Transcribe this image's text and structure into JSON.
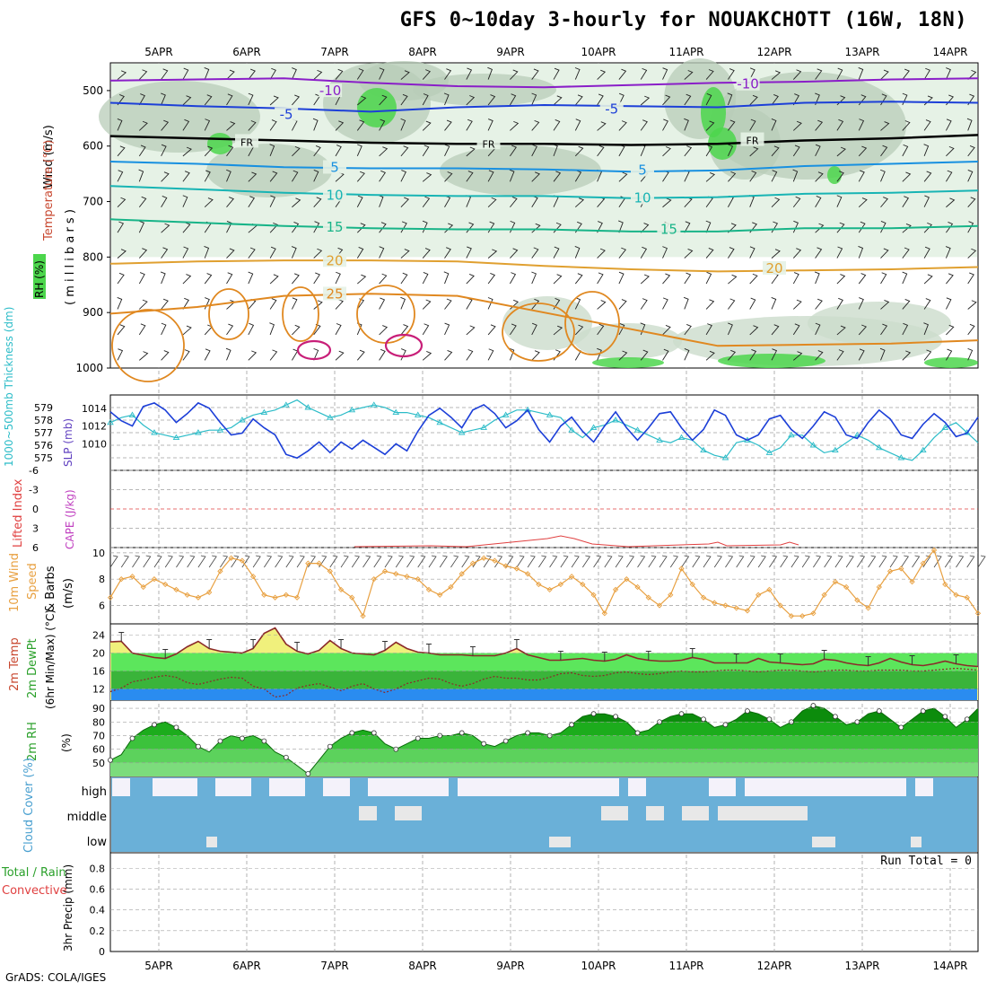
{
  "title": "GFS 0~10day 3-hourly for NOUAKCHOTT (16W, 18N)",
  "credit": "GrADS: COLA/IGES",
  "run_total": "Run Total = 0",
  "colors": {
    "rh_green": "#4cd64c",
    "slp_line": "#1c3fd8",
    "thickness_line": "#2cbcc8",
    "wind_line": "#e8a040",
    "temp_fill": "#f0f07c",
    "temp_line": "#8b2a2a",
    "dewpt_green": "#3ab43a",
    "blue_band": "#2a8cf0",
    "rh2m_dark": "#149614",
    "cloud_blue": "#6ab0d8",
    "grid": "#a0a0a0"
  },
  "chart_data": [
    {
      "type": "line",
      "panel": "upper-air",
      "ylabel_lines": [
        "Wind (m/s)",
        "Temperature (°C)",
        "RH (%)",
        "( m i l l i b a r s )"
      ],
      "y_ticks": [
        "500",
        "600",
        "700",
        "800",
        "900",
        "1000"
      ],
      "ylim": [
        450,
        1000
      ],
      "x_ticks": [
        "5APR",
        "6APR",
        "7APR",
        "8APR",
        "9APR",
        "10APR",
        "11APR",
        "12APR",
        "13APR",
        "14APR"
      ],
      "isotherm_labels": [
        {
          "label": "-10",
          "level": 502,
          "day": 2.95
        },
        {
          "label": "-10",
          "level": 490,
          "day": 7.7
        },
        {
          "label": "-5",
          "level": 545,
          "day": 2.45
        },
        {
          "label": "-5",
          "level": 535,
          "day": 6.15
        },
        {
          "label": "FR",
          "level": 593,
          "day": 2.0
        },
        {
          "label": "FR",
          "level": 596,
          "day": 4.75
        },
        {
          "label": "FR",
          "level": 590,
          "day": 7.75
        },
        {
          "label": "5",
          "level": 640,
          "day": 3.0
        },
        {
          "label": "5",
          "level": 645,
          "day": 6.5
        },
        {
          "label": "10",
          "level": 690,
          "day": 3.0
        },
        {
          "label": "10",
          "level": 695,
          "day": 6.5
        },
        {
          "label": "15",
          "level": 748,
          "day": 3.0
        },
        {
          "label": "15",
          "level": 752,
          "day": 6.8
        },
        {
          "label": "20",
          "level": 808,
          "day": 3.0
        },
        {
          "label": "20",
          "level": 822,
          "day": 8.0
        },
        {
          "label": "25",
          "level": 868,
          "day": 3.0
        }
      ],
      "isotherms": [
        {
          "name": "-10",
          "color": "#8a1ec8",
          "levels": [
            482,
            480,
            478,
            486,
            492,
            494,
            490,
            486,
            484,
            480,
            478
          ]
        },
        {
          "name": "-5",
          "color": "#1c3fd8",
          "levels": [
            522,
            528,
            532,
            538,
            530,
            526,
            528,
            530,
            522,
            520,
            522
          ]
        },
        {
          "name": "FR",
          "color": "#000000",
          "levels": [
            582,
            586,
            590,
            594,
            596,
            596,
            598,
            596,
            590,
            586,
            580
          ]
        },
        {
          "name": "5",
          "color": "#1890e0",
          "levels": [
            628,
            632,
            638,
            640,
            640,
            642,
            646,
            644,
            636,
            632,
            628
          ]
        },
        {
          "name": "10",
          "color": "#18b4b4",
          "levels": [
            672,
            678,
            684,
            688,
            690,
            690,
            694,
            692,
            686,
            684,
            680
          ]
        },
        {
          "name": "15",
          "color": "#18b488",
          "levels": [
            732,
            738,
            744,
            748,
            750,
            750,
            754,
            754,
            748,
            748,
            744
          ]
        },
        {
          "name": "20",
          "color": "#e0a030",
          "levels": [
            812,
            808,
            806,
            806,
            808,
            816,
            822,
            826,
            824,
            822,
            818
          ]
        },
        {
          "name": "25",
          "color": "#e08820",
          "levels": [
            902,
            890,
            870,
            866,
            870,
            900,
            930,
            960,
            958,
            956,
            950
          ]
        }
      ]
    },
    {
      "type": "line",
      "panel": "slp-thickness",
      "ylabel_left": "1000~500mb Thickness (dm)",
      "ylabel_right": "SLP (mb)",
      "thickness_ticks": [
        "579",
        "578",
        "577",
        "576",
        "575"
      ],
      "thickness_range": [
        574,
        580
      ],
      "slp_ticks": [
        "1014",
        "1012",
        "1010"
      ],
      "slp_range": [
        1007,
        1015.5
      ],
      "x_days": 9.75,
      "slp": [
        1013.6,
        1012.6,
        1012.0,
        1014.2,
        1014.6,
        1013.8,
        1012.4,
        1013.4,
        1014.6,
        1014.0,
        1012.4,
        1011.0,
        1011.2,
        1012.8,
        1011.8,
        1011.0,
        1008.8,
        1008.4,
        1009.2,
        1010.2,
        1009.0,
        1010.2,
        1009.4,
        1010.4,
        1009.6,
        1008.8,
        1010.0,
        1009.2,
        1011.4,
        1013.2,
        1014.0,
        1013.0,
        1011.8,
        1013.8,
        1014.4,
        1013.4,
        1011.8,
        1012.6,
        1013.8,
        1011.6,
        1010.2,
        1012.0,
        1013.0,
        1011.4,
        1010.2,
        1012.0,
        1013.6,
        1011.8,
        1010.4,
        1011.8,
        1013.4,
        1013.6,
        1011.8,
        1010.4,
        1011.6,
        1013.8,
        1013.2,
        1011.0,
        1010.4,
        1011.0,
        1012.8,
        1013.2,
        1011.6,
        1010.6,
        1012.0,
        1013.6,
        1013.0,
        1011.0,
        1010.6,
        1012.4,
        1013.8,
        1012.8,
        1011.0,
        1010.6,
        1012.2,
        1013.4,
        1012.4,
        1010.8,
        1011.2,
        1013.0
      ],
      "thickness": [
        577.8,
        578.2,
        578.4,
        577.6,
        577.0,
        576.8,
        576.6,
        576.8,
        577.0,
        577.2,
        577.2,
        577.4,
        578.0,
        578.4,
        578.6,
        578.8,
        579.2,
        579.6,
        579.0,
        578.6,
        578.2,
        578.4,
        578.8,
        579.0,
        579.2,
        579.0,
        578.6,
        578.6,
        578.4,
        578.2,
        577.8,
        577.4,
        577.0,
        577.2,
        577.4,
        578.0,
        578.4,
        578.8,
        578.8,
        578.6,
        578.4,
        578.2,
        577.2,
        576.6,
        577.4,
        577.6,
        578.0,
        577.6,
        577.2,
        576.8,
        576.4,
        576.2,
        576.6,
        576.4,
        575.6,
        575.2,
        575.0,
        576.2,
        576.4,
        576.0,
        575.4,
        575.8,
        576.8,
        576.8,
        576.0,
        575.4,
        575.6,
        576.2,
        576.8,
        576.4,
        575.8,
        575.4,
        575.0,
        574.8,
        575.6,
        576.6,
        577.4,
        577.8,
        577.0,
        576.2
      ]
    },
    {
      "type": "line",
      "panel": "stability",
      "ylabel_left": "Lifted Index",
      "ylabel_right": "CAPE (J/kg)",
      "y_ticks": [
        "-6",
        "-3",
        "0",
        "3",
        "6"
      ],
      "ylim": [
        -6,
        6
      ]
    },
    {
      "type": "line",
      "panel": "wind10m",
      "ylabel_lines": [
        "10m Wind",
        "Speed",
        "& Barbs",
        "(m/s)"
      ],
      "y_ticks": [
        "10",
        "8",
        "6"
      ],
      "ylim": [
        4.6,
        10.4
      ],
      "speed": [
        6.6,
        8.0,
        8.2,
        7.4,
        8.0,
        7.6,
        7.2,
        6.8,
        6.6,
        7.0,
        8.6,
        9.6,
        9.4,
        8.2,
        6.8,
        6.6,
        6.8,
        6.6,
        9.2,
        9.2,
        8.6,
        7.2,
        6.6,
        5.2,
        8.0,
        8.6,
        8.4,
        8.2,
        8.0,
        7.2,
        6.8,
        7.4,
        8.4,
        9.2,
        9.6,
        9.4,
        9.0,
        8.8,
        8.4,
        7.6,
        7.2,
        7.6,
        8.2,
        7.6,
        6.8,
        5.4,
        7.2,
        8.0,
        7.4,
        6.6,
        6.0,
        6.8,
        8.8,
        7.6,
        6.6,
        6.2,
        6.0,
        5.8,
        5.6,
        6.8,
        7.2,
        6.0,
        5.2,
        5.2,
        5.4,
        6.8,
        7.8,
        7.4,
        6.4,
        5.8,
        7.4,
        8.6,
        8.8,
        7.8,
        9.2,
        10.2,
        7.6,
        6.8,
        6.6,
        5.4
      ]
    },
    {
      "type": "area",
      "panel": "temp2m",
      "ylabel_lines": [
        "2m Temp",
        "2m DewPt",
        "(6hr Min/Max) (°C)"
      ],
      "y_ticks": [
        "24",
        "20",
        "16",
        "12"
      ],
      "ylim": [
        9.5,
        26.5
      ],
      "temp": [
        22.5,
        22.6,
        20.0,
        19.5,
        19.0,
        18.8,
        19.8,
        21.4,
        22.6,
        21.0,
        20.4,
        20.2,
        20.0,
        21.0,
        24.4,
        25.6,
        22.0,
        20.4,
        19.8,
        20.6,
        22.8,
        21.0,
        20.0,
        19.8,
        19.6,
        20.6,
        22.4,
        21.0,
        20.2,
        20.0,
        19.6,
        19.6,
        19.6,
        19.4,
        19.4,
        19.4,
        20.0,
        21.0,
        19.6,
        19.0,
        18.4,
        18.4,
        18.6,
        18.8,
        18.4,
        18.2,
        18.6,
        19.6,
        18.8,
        18.4,
        18.2,
        18.2,
        18.4,
        19.0,
        18.6,
        17.8,
        17.8,
        17.8,
        17.8,
        18.8,
        18.0,
        17.8,
        17.6,
        17.4,
        17.6,
        18.6,
        18.4,
        17.8,
        17.4,
        17.2,
        17.8,
        18.8,
        18.0,
        17.4,
        17.2,
        17.6,
        18.2,
        17.6,
        17.2,
        17.0
      ],
      "dewpt": [
        11.4,
        12.2,
        13.6,
        14.0,
        14.6,
        15.0,
        14.6,
        13.4,
        13.0,
        13.6,
        14.2,
        14.6,
        14.4,
        12.6,
        12.0,
        10.2,
        10.6,
        12.2,
        12.8,
        13.2,
        12.4,
        11.6,
        12.6,
        13.2,
        12.0,
        11.2,
        12.0,
        13.2,
        13.8,
        14.4,
        14.2,
        13.2,
        12.6,
        13.2,
        14.2,
        14.8,
        14.4,
        14.4,
        14.0,
        14.0,
        14.6,
        15.4,
        15.6,
        15.0,
        14.8,
        15.0,
        15.6,
        15.8,
        15.4,
        15.2,
        15.4,
        15.8,
        16.0,
        15.8,
        15.8,
        16.0,
        16.2,
        16.2,
        16.0,
        15.8,
        16.0,
        16.2,
        16.2,
        16.0,
        15.8,
        16.0,
        16.2,
        16.2,
        16.0,
        16.0,
        16.2,
        16.2,
        16.2,
        16.0,
        16.0,
        16.2,
        16.4,
        16.6,
        16.4,
        16.2
      ]
    },
    {
      "type": "area",
      "panel": "rh2m",
      "ylabel_lines": [
        "2m RH",
        "(%)"
      ],
      "y_ticks": [
        "90",
        "80",
        "70",
        "60",
        "50"
      ],
      "ylim": [
        40,
        96
      ],
      "rh": [
        52,
        56,
        68,
        74,
        78,
        80,
        76,
        70,
        62,
        58,
        66,
        70,
        68,
        70,
        66,
        58,
        54,
        48,
        42,
        52,
        62,
        68,
        72,
        74,
        72,
        64,
        60,
        64,
        68,
        68,
        70,
        70,
        72,
        70,
        64,
        62,
        66,
        70,
        72,
        72,
        70,
        72,
        78,
        84,
        86,
        86,
        84,
        80,
        72,
        74,
        80,
        84,
        86,
        86,
        82,
        76,
        78,
        82,
        88,
        86,
        82,
        76,
        80,
        88,
        92,
        90,
        84,
        78,
        80,
        86,
        88,
        82,
        76,
        82,
        88,
        90,
        84,
        76,
        82,
        90
      ]
    },
    {
      "type": "heatmap",
      "panel": "cloud",
      "ylabel": "Cloud Cover (%)",
      "rows": [
        "high",
        "middle",
        "low"
      ]
    },
    {
      "type": "bar",
      "panel": "precip",
      "ylabel_left": "Total / Rain",
      "ylabel_left2": "Convective",
      "ylabel_right": "3hr Precip (mm)",
      "y_ticks": [
        "0.8",
        "0.6",
        "0.4",
        "0.2",
        "0"
      ],
      "ylim": [
        0,
        0.95
      ]
    }
  ]
}
